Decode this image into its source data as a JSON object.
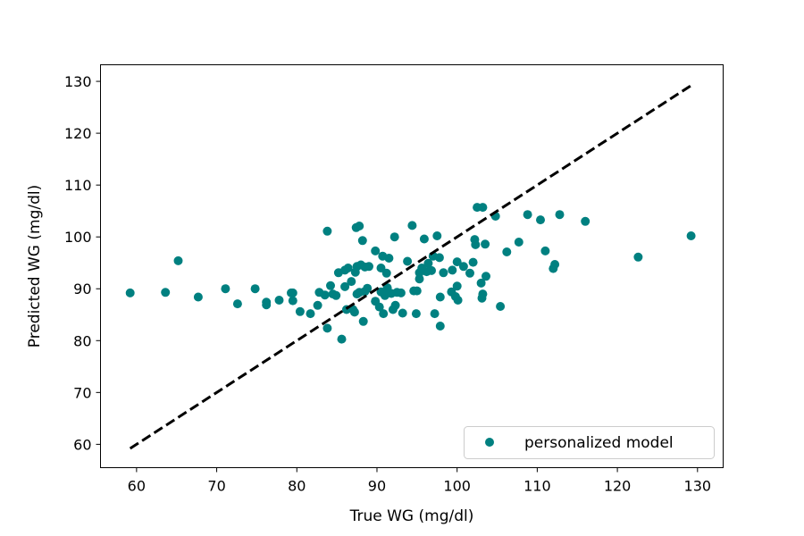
{
  "chart_data": {
    "type": "scatter",
    "title": "",
    "xlabel": "True WG (mg/dl)",
    "ylabel": "Predicted WG (mg/dl)",
    "xlim": [
      55.5,
      133.2
    ],
    "ylim": [
      55.5,
      133.2
    ],
    "xticks": [
      60,
      70,
      80,
      90,
      100,
      110,
      120,
      130
    ],
    "yticks": [
      60,
      70,
      80,
      90,
      100,
      110,
      120,
      130
    ],
    "grid": false,
    "legend_position": "bottom-right",
    "colors": {
      "points": "#008080",
      "reference_line": "#000000"
    },
    "reference_line": {
      "style": "dashed",
      "from": [
        59.2,
        59.2
      ],
      "to": [
        129.2,
        129.2
      ]
    },
    "series": [
      {
        "name": "personalized model",
        "points": [
          [
            59.2,
            89.2
          ],
          [
            63.6,
            89.3
          ],
          [
            65.2,
            95.4
          ],
          [
            67.7,
            88.4
          ],
          [
            71.1,
            90.0
          ],
          [
            72.6,
            87.1
          ],
          [
            74.8,
            90.0
          ],
          [
            76.2,
            87.4
          ],
          [
            76.2,
            86.9
          ],
          [
            77.8,
            87.8
          ],
          [
            79.3,
            89.2
          ],
          [
            79.5,
            89.2
          ],
          [
            79.5,
            87.7
          ],
          [
            80.4,
            85.6
          ],
          [
            81.7,
            85.2
          ],
          [
            82.6,
            86.8
          ],
          [
            82.8,
            89.3
          ],
          [
            83.5,
            88.8
          ],
          [
            83.8,
            101.1
          ],
          [
            83.8,
            82.4
          ],
          [
            84.2,
            90.6
          ],
          [
            84.5,
            89.0
          ],
          [
            84.9,
            88.7
          ],
          [
            85.2,
            93.1
          ],
          [
            85.6,
            80.3
          ],
          [
            86.0,
            90.4
          ],
          [
            86.0,
            93.6
          ],
          [
            86.2,
            86.0
          ],
          [
            86.4,
            94.0
          ],
          [
            86.8,
            91.4
          ],
          [
            87.0,
            86.0
          ],
          [
            87.2,
            85.5
          ],
          [
            87.3,
            93.2
          ],
          [
            87.4,
            101.8
          ],
          [
            87.5,
            94.3
          ],
          [
            87.5,
            89.0
          ],
          [
            87.8,
            102.1
          ],
          [
            87.8,
            89.3
          ],
          [
            88.0,
            94.6
          ],
          [
            88.2,
            99.3
          ],
          [
            88.3,
            83.7
          ],
          [
            88.5,
            89.5
          ],
          [
            88.5,
            94.2
          ],
          [
            88.8,
            90.1
          ],
          [
            89.0,
            94.3
          ],
          [
            89.8,
            97.3
          ],
          [
            89.8,
            87.6
          ],
          [
            90.3,
            86.5
          ],
          [
            90.5,
            94.0
          ],
          [
            90.5,
            89.4
          ],
          [
            90.7,
            96.3
          ],
          [
            90.8,
            85.2
          ],
          [
            91.0,
            88.7
          ],
          [
            91.2,
            93.0
          ],
          [
            91.3,
            90.2
          ],
          [
            91.5,
            95.9
          ],
          [
            91.8,
            89.1
          ],
          [
            92.0,
            86.0
          ],
          [
            92.2,
            100.0
          ],
          [
            92.3,
            86.8
          ],
          [
            92.5,
            89.3
          ],
          [
            93.0,
            89.2
          ],
          [
            93.2,
            85.3
          ],
          [
            93.8,
            95.3
          ],
          [
            94.4,
            102.2
          ],
          [
            94.6,
            89.6
          ],
          [
            94.9,
            85.2
          ],
          [
            95.0,
            89.6
          ],
          [
            95.3,
            93.1
          ],
          [
            95.3,
            91.9
          ],
          [
            95.6,
            94.0
          ],
          [
            95.9,
            99.6
          ],
          [
            96.2,
            93.3
          ],
          [
            96.4,
            94.9
          ],
          [
            96.8,
            93.5
          ],
          [
            97.0,
            96.3
          ],
          [
            97.2,
            85.2
          ],
          [
            97.5,
            100.2
          ],
          [
            97.8,
            96.0
          ],
          [
            97.9,
            82.8
          ],
          [
            97.9,
            88.4
          ],
          [
            98.3,
            93.1
          ],
          [
            99.3,
            89.4
          ],
          [
            99.4,
            93.6
          ],
          [
            99.8,
            88.5
          ],
          [
            100.0,
            90.5
          ],
          [
            100.0,
            95.2
          ],
          [
            100.1,
            87.8
          ],
          [
            100.8,
            94.3
          ],
          [
            101.6,
            93.0
          ],
          [
            102.0,
            95.1
          ],
          [
            102.2,
            99.5
          ],
          [
            102.3,
            98.5
          ],
          [
            102.5,
            105.7
          ],
          [
            103.0,
            91.1
          ],
          [
            103.1,
            88.2
          ],
          [
            103.2,
            89.0
          ],
          [
            103.2,
            105.7
          ],
          [
            103.5,
            98.6
          ],
          [
            103.6,
            92.4
          ],
          [
            104.8,
            104.0
          ],
          [
            105.4,
            86.6
          ],
          [
            106.2,
            97.1
          ],
          [
            107.7,
            99.0
          ],
          [
            108.8,
            104.3
          ],
          [
            110.4,
            103.3
          ],
          [
            111.0,
            97.3
          ],
          [
            112.0,
            93.9
          ],
          [
            112.2,
            94.7
          ],
          [
            112.8,
            104.3
          ],
          [
            116.0,
            103.0
          ],
          [
            122.6,
            96.1
          ],
          [
            129.2,
            100.2
          ]
        ]
      }
    ]
  }
}
